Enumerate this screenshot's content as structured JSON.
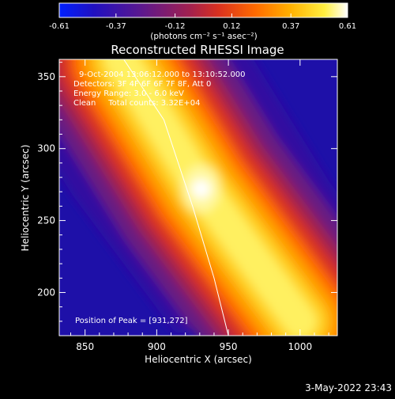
{
  "chart_data": {
    "type": "heatmap",
    "title": "Reconstructed RHESSI Image",
    "xlabel": "Heliocentric X (arcsec)",
    "ylabel": "Heliocentric Y (arcsec)",
    "xlim": [
      832,
      1026
    ],
    "ylim": [
      170,
      362
    ],
    "x_ticks": [
      850,
      900,
      950,
      1000
    ],
    "y_ticks": [
      200,
      250,
      300,
      350
    ],
    "colorbar": {
      "ticks": [
        -0.61,
        -0.37,
        -0.12,
        0.12,
        0.37,
        0.61
      ],
      "tick_labels": [
        "-0.61",
        "-0.37",
        "-0.12",
        "0.12",
        "0.37",
        "0.61"
      ],
      "range": [
        -0.61,
        0.61
      ],
      "unit": "(photons cm⁻² s⁻¹ asec⁻²)"
    },
    "annotations": [
      "9-Oct-2004 13:06:12.000 to 13:10:52.000",
      "Detectors: 3F 4F 6F 6F 7F 8F, Att 0",
      "Energy Range: 3.0 - 6.0 keV",
      "Clean     Total counts: 3.32E+04"
    ],
    "peak_label": "Position of Peak = [931,272]",
    "peak": [
      931,
      272
    ],
    "limb_curve": [
      [
        877,
        362
      ],
      [
        905,
        320
      ],
      [
        925,
        260
      ],
      [
        940,
        210
      ],
      [
        950,
        170
      ]
    ],
    "source_band": {
      "description_points": [
        [
          875,
          362
        ],
        [
          931,
          272
        ],
        [
          1000,
          180
        ]
      ],
      "max": 0.61
    },
    "grid": false
  },
  "footer": {
    "timestamp": "3-May-2022 23:43"
  }
}
